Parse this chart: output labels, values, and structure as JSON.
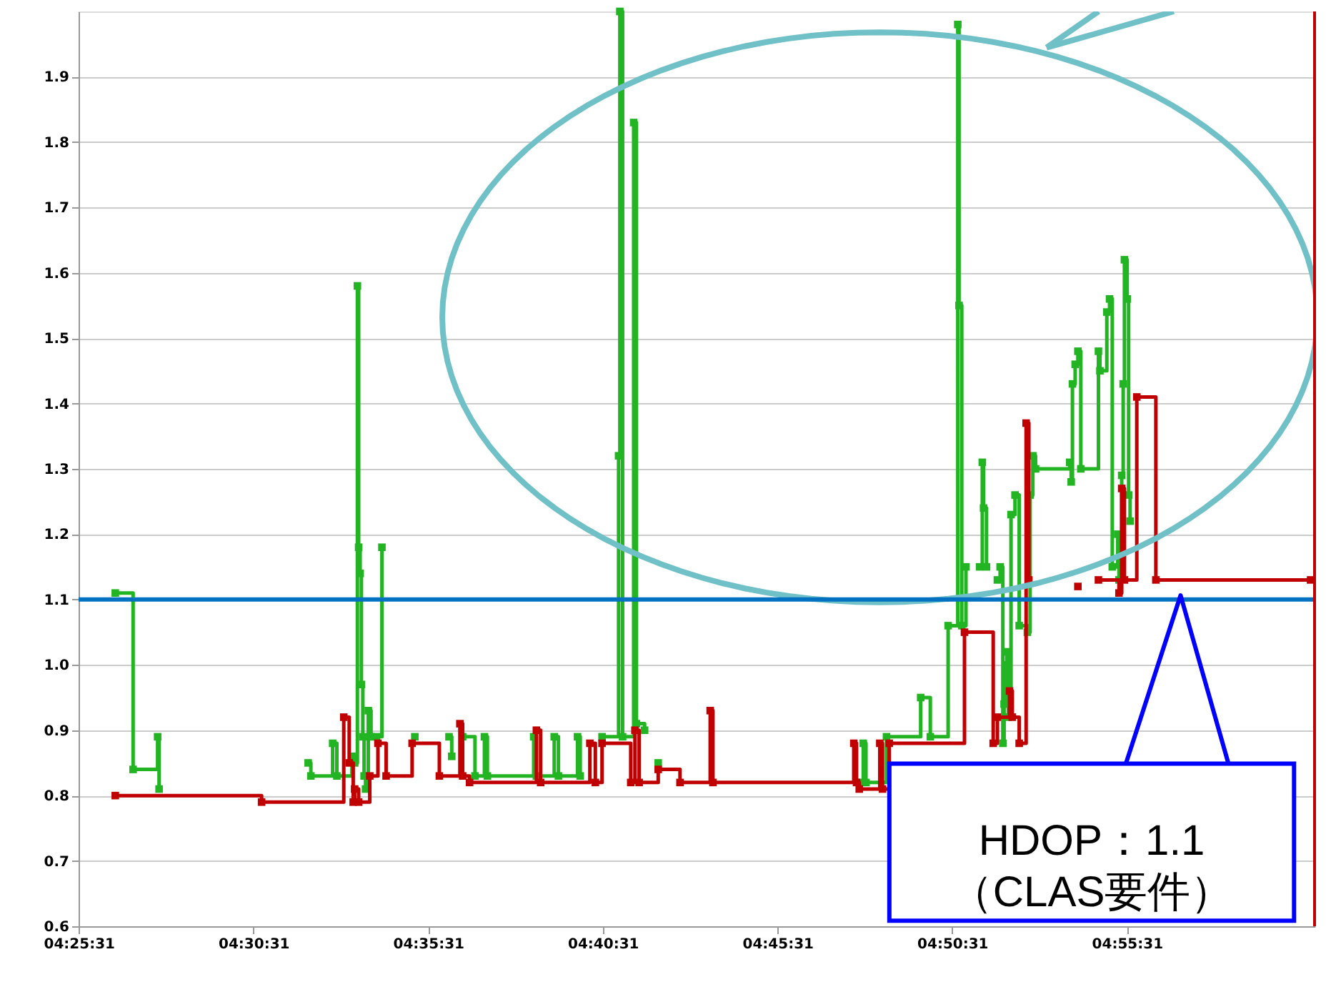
{
  "chart_data": {
    "type": "step",
    "xlim": [
      4.4252,
      5.0148
    ],
    "ylim": [
      0.6,
      2.0
    ],
    "xticks": [
      {
        "value": 4.42528,
        "label": "04:25:31"
      },
      {
        "value": 4.50861,
        "label": "04:30:31"
      },
      {
        "value": 4.59194,
        "label": "04:35:31"
      },
      {
        "value": 4.67528,
        "label": "04:40:31"
      },
      {
        "value": 4.75861,
        "label": "04:45:31"
      },
      {
        "value": 4.84194,
        "label": "04:50:31"
      },
      {
        "value": 4.92528,
        "label": "04:55:31"
      }
    ],
    "yticks": [
      0.6,
      0.7,
      0.8,
      0.9,
      {
        "value": 1.0,
        "label": "1.0"
      },
      1.1,
      1.2,
      1.3,
      1.4,
      1.5,
      1.6,
      1.7,
      1.8,
      1.9
    ],
    "grid": "y",
    "marker": "square",
    "series": [
      {
        "color": "#22b422",
        "x": [
          4.4427,
          4.4512,
          4.4629,
          4.4636,
          4.4786,
          4.5347,
          4.536,
          4.5464,
          4.5484,
          4.5556,
          4.5569,
          4.5582,
          4.5588,
          4.5595,
          4.5601,
          4.5608,
          4.5614,
          4.5621,
          4.5634,
          4.5647,
          4.5673,
          4.5699,
          4.5712,
          4.5856,
          4.5973,
          4.6019,
          4.6032,
          4.6045,
          4.6084,
          4.6143,
          4.6188,
          4.6202,
          4.6423,
          4.6436,
          4.6521,
          4.6541,
          4.6632,
          4.6645,
          4.6736,
          4.6749,
          4.6828,
          4.6834,
          4.6847,
          4.69,
          4.6913,
          4.6952,
          4.6965,
          4.7017,
          4.7121,
          4.7982,
          4.7995,
          4.8008,
          4.8106,
          4.8269,
          4.8315,
          4.84,
          4.8446,
          4.8452,
          4.8465,
          4.8485,
          4.8498,
          4.855,
          4.8563,
          4.8569,
          4.8583,
          4.8596,
          4.8635,
          4.8648,
          4.8661,
          4.8667,
          4.8674,
          4.868,
          4.8687,
          4.87,
          4.8719,
          4.8739,
          4.8778,
          4.8791,
          4.8804,
          4.8817,
          4.898,
          4.8987,
          4.8993,
          4.9006,
          4.9019,
          4.9033,
          4.9117,
          4.9124,
          4.9157,
          4.917,
          4.9183,
          4.9209,
          4.9215,
          4.9228,
          4.9235,
          4.9241,
          4.9254,
          4.9261,
          4.9268
        ],
        "values": [
          1.11,
          0.84,
          0.89,
          0.81,
          null,
          0.85,
          0.83,
          0.88,
          0.83,
          0.86,
          0.85,
          1.58,
          1.18,
          1.14,
          0.97,
          0.89,
          0.83,
          0.81,
          0.93,
          0.89,
          0.89,
          1.18,
          null,
          0.89,
          null,
          0.89,
          0.86,
          null,
          0.89,
          0.83,
          0.89,
          0.83,
          0.89,
          0.83,
          0.89,
          0.83,
          0.89,
          0.83,
          null,
          0.89,
          1.32,
          2.0,
          0.89,
          1.83,
          0.91,
          0.9,
          null,
          0.85,
          null,
          0.82,
          0.88,
          0.82,
          0.89,
          0.95,
          0.89,
          1.06,
          1.98,
          1.55,
          1.06,
          1.15,
          null,
          1.15,
          1.31,
          1.24,
          1.15,
          null,
          1.13,
          1.15,
          0.88,
          0.94,
          1.0,
          1.02,
          0.92,
          1.23,
          1.26,
          1.06,
          1.05,
          1.26,
          1.32,
          1.3,
          1.31,
          1.28,
          1.43,
          1.46,
          1.48,
          1.3,
          1.48,
          1.45,
          1.54,
          1.56,
          1.15,
          1.2,
          1.13,
          1.29,
          1.43,
          1.62,
          1.56,
          1.26,
          1.22
        ]
      },
      {
        "color": "#c00000",
        "x": [
          4.4427,
          4.5125,
          4.5517,
          4.5543,
          4.5562,
          4.5569,
          4.5588,
          4.5641,
          4.568,
          4.5719,
          4.5843,
          4.5973,
          4.6071,
          4.6084,
          4.6117,
          4.6436,
          4.6456,
          4.6691,
          4.6717,
          4.6749,
          4.6886,
          4.6906,
          4.6926,
          4.7017,
          4.7121,
          4.7265,
          4.7278,
          4.795,
          4.7963,
          4.7976,
          4.8074,
          4.8087,
          4.8119,
          4.8478,
          4.8615,
          4.8635,
          4.8693,
          4.8706,
          4.8739,
          4.8772,
          4.8785,
          4.8811,
          4.9019,
          4.9039,
          4.9117,
          4.9215,
          4.9228,
          4.9241,
          4.93,
          4.9391,
          5.0129
        ],
        "values": [
          0.8,
          0.79,
          0.92,
          0.85,
          0.79,
          0.81,
          0.79,
          0.83,
          0.88,
          0.83,
          0.88,
          0.83,
          0.91,
          0.83,
          0.82,
          0.9,
          0.82,
          0.88,
          0.82,
          0.88,
          0.82,
          0.9,
          0.82,
          0.84,
          0.82,
          0.93,
          0.82,
          0.88,
          0.82,
          0.81,
          0.88,
          0.81,
          0.88,
          1.05,
          0.88,
          0.92,
          0.96,
          0.92,
          0.88,
          1.37,
          1.13,
          null,
          1.12,
          null,
          1.13,
          1.11,
          1.27,
          1.13,
          1.41,
          1.13,
          1.13
        ]
      }
    ],
    "ref_lines": [
      {
        "axis": "y",
        "value": 1.1,
        "color": "#0070c0"
      },
      {
        "axis": "x",
        "value": 5.0148,
        "color": "#c00000"
      }
    ],
    "annotations": [
      "HDOP：1.1\n（CLAS要件）"
    ]
  }
}
